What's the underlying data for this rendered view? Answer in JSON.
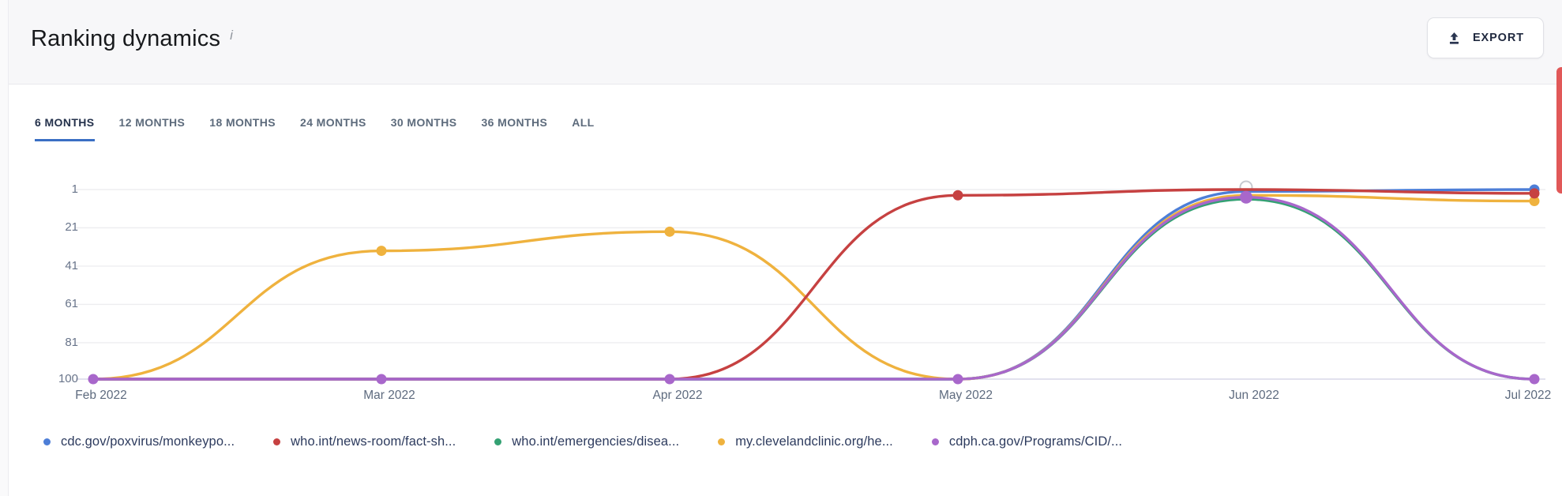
{
  "header": {
    "title": "Ranking dynamics",
    "info_icon": "i",
    "export_label": "EXPORT"
  },
  "tabs": [
    {
      "label": "6 MONTHS",
      "active": true
    },
    {
      "label": "12 MONTHS",
      "active": false
    },
    {
      "label": "18 MONTHS",
      "active": false
    },
    {
      "label": "24 MONTHS",
      "active": false
    },
    {
      "label": "30 MONTHS",
      "active": false
    },
    {
      "label": "36 MONTHS",
      "active": false
    },
    {
      "label": "ALL",
      "active": false
    }
  ],
  "chart_data": {
    "type": "line",
    "title": "Ranking dynamics",
    "x_labels": [
      "Feb 2022",
      "Mar 2022",
      "Apr 2022",
      "May 2022",
      "Jun 2022",
      "Jul 2022"
    ],
    "y_ticks": [
      1,
      21,
      41,
      61,
      81,
      100
    ],
    "y_range": [
      1,
      100
    ],
    "y_axis_inverted": true,
    "grid": "horizontal",
    "legend_position": "bottom",
    "series": [
      {
        "name": "cdc.gov/poxvirus/monkeypo...",
        "color": "#4d7ed7",
        "values": [
          100,
          100,
          100,
          100,
          2,
          1
        ],
        "dot_indices": [
          5
        ]
      },
      {
        "name": "who.int/news-room/fact-sh...",
        "color": "#c64141",
        "values": [
          100,
          100,
          100,
          4,
          1,
          3
        ],
        "dot_indices": [
          3,
          5
        ]
      },
      {
        "name": "who.int/emergencies/disea...",
        "color": "#34a173",
        "values": [
          100,
          100,
          100,
          100,
          6,
          100
        ],
        "dot_indices": []
      },
      {
        "name": "my.clevelandclinic.org/he...",
        "color": "#efb23e",
        "values": [
          100,
          33,
          23,
          100,
          4,
          7
        ],
        "dot_indices": [
          1,
          2,
          5
        ]
      },
      {
        "name": "cdph.ca.gov/Programs/CID/...",
        "color": "#a867cb",
        "values": [
          100,
          100,
          100,
          100,
          5,
          100
        ],
        "dot_indices": [
          0,
          1,
          2,
          3,
          4,
          5
        ]
      }
    ],
    "highlight_marker": {
      "x_index": 4,
      "value": 1
    }
  },
  "theme": {
    "accent_color": "#3a6fc4",
    "grid_color": "#ededf0",
    "baseline_color": "#d9d7e8",
    "edge_bar_color": "#e15858"
  }
}
